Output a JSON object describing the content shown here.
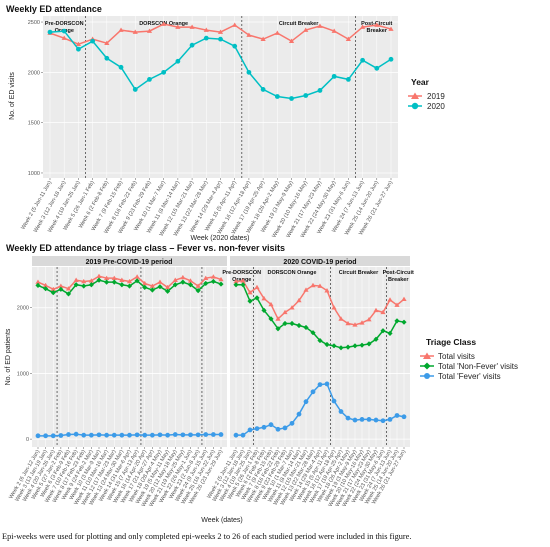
{
  "caption": "Epi-weeks were used for plotting and only completed epi-weeks 2 to 26 of each studied period were included in this figure.",
  "colors": {
    "orange": "#F8766D",
    "cyan": "#00BFC4",
    "green": "#00A82E",
    "blue": "#3C9BE8",
    "panel": "#EBEBEB",
    "strip": "#D9D9D9"
  },
  "chart_data": [
    {
      "type": "line",
      "title": "Weekly ED attendance",
      "xlabel": "Week (2020 dates)",
      "ylabel": "No. of ED visits",
      "ylim": [
        0,
        2500
      ],
      "yticks": [
        1000,
        1500,
        2000,
        2500
      ],
      "categories": [
        "Week 2 (5 Jan-11 Jan)",
        "Week 3 (12 Jan-18 Jan)",
        "Week 4 (19 Jan-25 Jan)",
        "Week 5 (26 Jan-1 Feb)",
        "Week 6 (2 Feb-8 Feb)",
        "Week 7 (9 Feb-15 Feb)",
        "Week 8 (16 Feb-22 Feb)",
        "Week 9 (23 Feb-29 Feb)",
        "Week 10 (1 Mar-7 Mar)",
        "Week 11 (8 Mar-14 Mar)",
        "Week 12 (15 Mar-21 Mar)",
        "Week 13 (22 Mar-28 Mar)",
        "Week 14 (29 Mar-4 Apr)",
        "Week 15 (5 Apr-11 Apr)",
        "Week 16 (12 Apr-18 Apr)",
        "Week 17 (19 Apr-25 Apr)",
        "Week 18 (26 Apr-2 May)",
        "Week 19 (3 May-9 May)",
        "Week 20 (10 May-16 May)",
        "Week 21 (17 May-23 May)",
        "Week 22 (24 May-30 May)",
        "Week 23 (31 May-6 Jun)",
        "Week 24 (7 Jun-13 Jun)",
        "Week 25 (14 Jun-20 Jun)",
        "Week 26 (21 Jun-27 Jun)"
      ],
      "phases": [
        "Pre-DORSCON Orange",
        "DORSCON Orange",
        "Circuit Breaker",
        "Post-Circuit Breaker"
      ],
      "legend": {
        "title": "Year",
        "position": "right"
      },
      "series": [
        {
          "name": "2019",
          "values": [
            2390,
            2340,
            2280,
            2330,
            2290,
            2420,
            2400,
            2410,
            2480,
            2450,
            2450,
            2420,
            2400,
            2470,
            2370,
            2330,
            2390,
            2310,
            2420,
            2460,
            2410,
            2330,
            2450,
            2470,
            2430
          ]
        },
        {
          "name": "2020",
          "values": [
            2400,
            2410,
            2230,
            2310,
            2140,
            2050,
            1830,
            1930,
            2000,
            2110,
            2270,
            2340,
            2330,
            2260,
            2000,
            1830,
            1760,
            1740,
            1770,
            1820,
            1960,
            1930,
            2120,
            2040,
            2130
          ]
        }
      ]
    },
    {
      "type": "line",
      "title": "Weekly ED attendance by triage class – Fever vs. non-fever visits",
      "xlabel": "Week (dates)",
      "ylabel": "No. of ED patients",
      "ylim": [
        0,
        2500
      ],
      "yticks": [
        0,
        1000,
        2000
      ],
      "facets": [
        "2019 Pre-COVID-19 period",
        "2020 COVID-19 period"
      ],
      "phases": [
        "Pre-DORSCON Orange",
        "DORSCON Orange",
        "Circuit Breaker",
        "Post-Circuit Breaker"
      ],
      "categories_2019": [
        "Week 2 (6 Jan-12 Jan)",
        "Week 3 (13 Jan-19 Jan)",
        "Week 4 (20 Jan-26 Jan)",
        "Week 5 (27 Jan-2 Feb)",
        "Week 6 (3 Feb-9 Feb)",
        "Week 7 (10 Feb-16 Feb)",
        "Week 8 (17 Feb-23 Feb)",
        "Week 9 (24 Feb-2 Mar)",
        "Week 10 (3 Mar-9 Mar)",
        "Week 11 (10 Mar-16 Mar)",
        "Week 12 (17 Mar-23 Mar)",
        "Week 13 (24 Mar-30 Mar)",
        "Week 14 (31 Mar-6 Apr)",
        "Week 15 (7 Apr-13 Apr)",
        "Week 16 (14 Apr-20 Apr)",
        "Week 17 (21 Apr-27 Apr)",
        "Week 18 (28 Apr-4 May)",
        "Week 19 (5 May-11 May)",
        "Week 20 (12 May-18 May)",
        "Week 21 (19 May-25 May)",
        "Week 22 (26 May-1 Jun)",
        "Week 23 (2 Jun-8 Jun)",
        "Week 24 (9 Jun-15 Jun)",
        "Week 25 (16 Jun-22 Jun)",
        "Week 26 (23 Jun-29 Jun)"
      ],
      "categories_2020": [
        "Week 2 (5 Jan-11 Jan)",
        "Week 3 (12 Jan-18 Jan)",
        "Week 4 (19 Jan-25 Jan)",
        "Week 5 (26 Jan-1 Feb)",
        "Week 6 (2 Feb-8 Feb)",
        "Week 7 (9 Feb-15 Feb)",
        "Week 8 (16 Feb-22 Feb)",
        "Week 9 (23 Feb-29 Feb)",
        "Week 10 (1 Mar-7 Mar)",
        "Week 11 (8 Mar-14 Mar)",
        "Week 12 (15 Mar-21 Mar)",
        "Week 13 (22 Mar-28 Mar)",
        "Week 14 (29 Mar-4 Apr)",
        "Week 15 (5 Apr-11 Apr)",
        "Week 16 (12 Apr-18 Apr)",
        "Week 17 (19 Apr-25 Apr)",
        "Week 18 (26 Apr-2 May)",
        "Week 19 (3 May-9 May)",
        "Week 20 (10 May-16 May)",
        "Week 21 (17 May-23 May)",
        "Week 22 (24 May-30 May)",
        "Week 23 (31 May-6 Jun)",
        "Week 24 (7 Jun-13 Jun)",
        "Week 25 (14 Jun-20 Jun)",
        "Week 26 (21 Jun-27 Jun)"
      ],
      "legend": {
        "title": "Triage Class",
        "position": "right"
      },
      "series": [
        {
          "name": "Total visits",
          "facet": "2019 Pre-COVID-19 period",
          "values": [
            2390,
            2340,
            2280,
            2330,
            2290,
            2420,
            2400,
            2410,
            2480,
            2450,
            2450,
            2420,
            2400,
            2470,
            2370,
            2330,
            2390,
            2310,
            2420,
            2460,
            2410,
            2330,
            2450,
            2470,
            2430
          ]
        },
        {
          "name": "Total 'Non-Fever' visits",
          "facet": "2019 Pre-COVID-19 period",
          "values": [
            2340,
            2290,
            2230,
            2280,
            2210,
            2350,
            2330,
            2350,
            2420,
            2390,
            2390,
            2350,
            2330,
            2410,
            2310,
            2270,
            2320,
            2250,
            2350,
            2390,
            2350,
            2260,
            2370,
            2400,
            2360
          ]
        },
        {
          "name": "Total 'Fever' visits",
          "facet": "2019 Pre-COVID-19 period",
          "values": [
            50,
            50,
            50,
            55,
            70,
            75,
            60,
            60,
            65,
            60,
            60,
            60,
            60,
            65,
            60,
            60,
            65,
            60,
            70,
            65,
            65,
            65,
            70,
            70,
            70
          ]
        },
        {
          "name": "Total visits",
          "facet": "2020 COVID-19 period",
          "values": [
            2400,
            2410,
            2230,
            2310,
            2140,
            2050,
            1830,
            1930,
            2000,
            2110,
            2270,
            2340,
            2330,
            2260,
            2000,
            1830,
            1760,
            1740,
            1770,
            1820,
            1960,
            1930,
            2120,
            2040,
            2130
          ]
        },
        {
          "name": "Total 'Non-Fever' visits",
          "facet": "2020 COVID-19 period",
          "values": [
            2350,
            2350,
            2100,
            2150,
            1960,
            1830,
            1680,
            1760,
            1760,
            1730,
            1700,
            1620,
            1500,
            1440,
            1420,
            1390,
            1400,
            1420,
            1430,
            1450,
            1520,
            1650,
            1610,
            1800,
            1780
          ]
        },
        {
          "name": "Total 'Fever' visits",
          "facet": "2020 COVID-19 period",
          "values": [
            60,
            60,
            140,
            160,
            180,
            220,
            150,
            170,
            240,
            380,
            570,
            720,
            830,
            840,
            580,
            420,
            320,
            290,
            300,
            300,
            290,
            280,
            300,
            360,
            340
          ]
        }
      ]
    }
  ]
}
